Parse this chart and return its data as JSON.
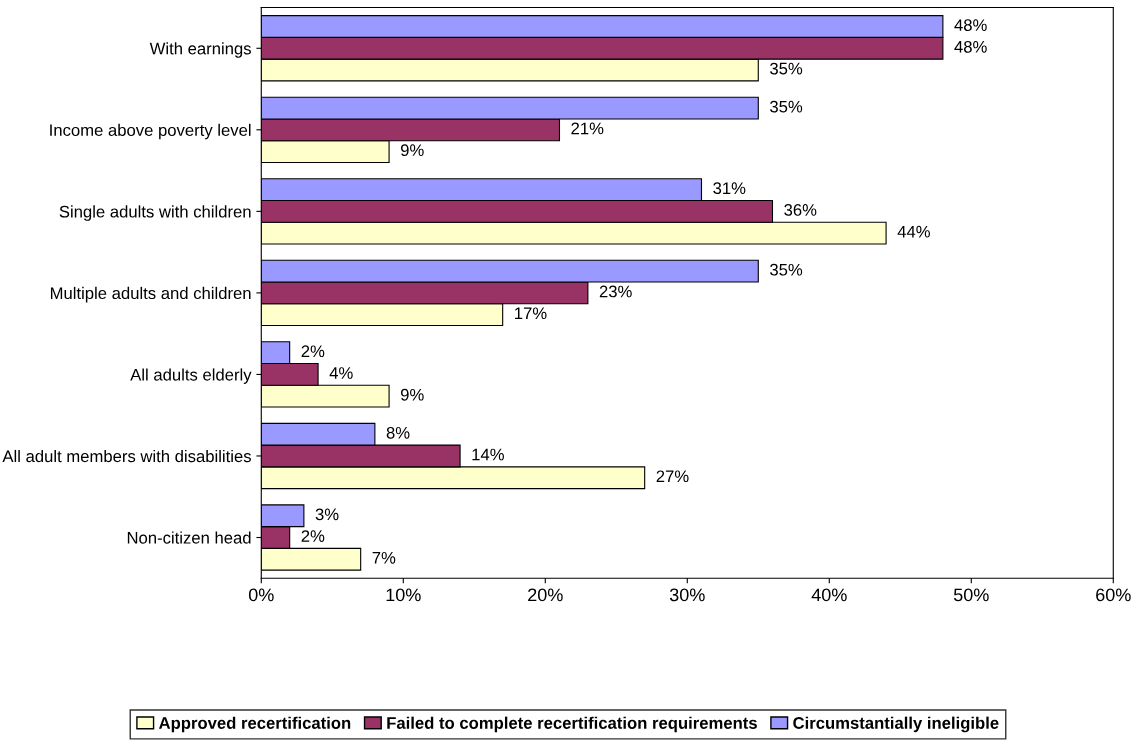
{
  "chart_data": {
    "type": "bar",
    "orientation": "horizontal",
    "categories": [
      "With earnings",
      "Income above poverty level",
      "Single adults with children",
      "Multiple adults and children",
      "All adults elderly",
      "All adult members with disabilities",
      "Non-citizen head"
    ],
    "series": [
      {
        "name": "Approved recertification",
        "color": "#ffffcc",
        "values": [
          35,
          9,
          44,
          17,
          9,
          27,
          7
        ],
        "value_labels": [
          "35%",
          "9%",
          "44%",
          "17%",
          "9%",
          "27%",
          "7%"
        ]
      },
      {
        "name": "Failed to complete recertification requirements",
        "color": "#993366",
        "values": [
          48,
          21,
          36,
          23,
          4,
          14,
          2
        ],
        "value_labels": [
          "48%",
          "21%",
          "36%",
          "23%",
          "4%",
          "14%",
          "2%"
        ]
      },
      {
        "name": "Circumstantially ineligible",
        "color": "#9999ff",
        "values": [
          48,
          35,
          31,
          35,
          2,
          8,
          3
        ],
        "value_labels": [
          "48%",
          "35%",
          "31%",
          "35%",
          "2%",
          "8%",
          "3%"
        ]
      }
    ],
    "xlim": [
      0,
      60
    ],
    "xticks": [
      {
        "value": 0,
        "label": "0%"
      },
      {
        "value": 10,
        "label": "10%"
      },
      {
        "value": 20,
        "label": "20%"
      },
      {
        "value": 30,
        "label": "30%"
      },
      {
        "value": 40,
        "label": "40%"
      },
      {
        "value": 50,
        "label": "50%"
      },
      {
        "value": 60,
        "label": "60%"
      }
    ],
    "grid": false,
    "legend": "bottom"
  }
}
